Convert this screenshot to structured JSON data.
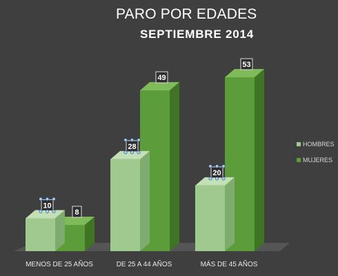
{
  "colors": {
    "background": "#3f3f3f",
    "hombres_front": "#9fc98e",
    "hombres_top": "#c4e0b6",
    "hombres_side": "#7eab6e",
    "mujeres_front": "#5d9c3a",
    "mujeres_top": "#7fbb59",
    "mujeres_side": "#3f7425",
    "floor": "#555555",
    "label_box_fill": "#2e2e2e",
    "label_box_stroke": "#dddddd",
    "selection_handle": "#9fd0ff"
  },
  "chart_data": {
    "type": "bar",
    "title": "PARO POR EDADES",
    "subtitle": "SEPTIEMBRE 2014",
    "categories": [
      "MENOS DE 25 AÑOS",
      "DE 25 A 44 AÑOS",
      "MÁS DE 45 AÑOS"
    ],
    "series": [
      {
        "name": "HOMBRES",
        "values": [
          10,
          28,
          20
        ]
      },
      {
        "name": "MUJERES",
        "values": [
          8,
          49,
          53
        ]
      }
    ],
    "ylim": [
      0,
      53
    ],
    "style": "3d-column",
    "grid": false,
    "legend_position": "right",
    "data_labels": true,
    "selected_series": "HOMBRES"
  }
}
